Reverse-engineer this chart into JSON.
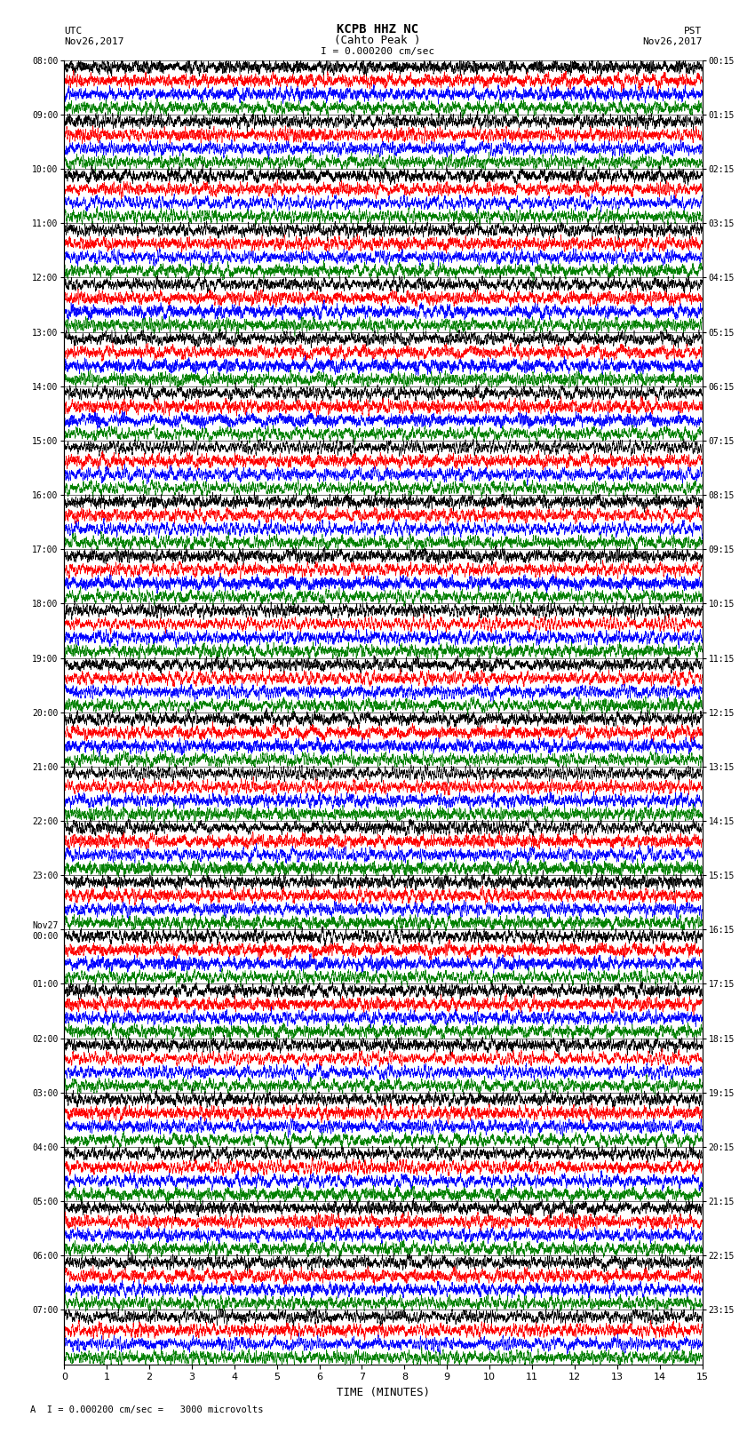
{
  "title_line1": "KCPB HHZ NC",
  "title_line2": "(Cahto Peak )",
  "scale_label": " = 0.000200 cm/sec",
  "label_left_top": "UTC",
  "label_left_date": "Nov26,2017",
  "label_right_top": "PST",
  "label_right_date": "Nov26,2017",
  "xlabel": "TIME (MINUTES)",
  "footer": "A  I = 0.000200 cm/sec =   3000 microvolts",
  "left_times": [
    "08:00",
    "09:00",
    "10:00",
    "11:00",
    "12:00",
    "13:00",
    "14:00",
    "15:00",
    "16:00",
    "17:00",
    "18:00",
    "19:00",
    "20:00",
    "21:00",
    "22:00",
    "23:00",
    "Nov27\n00:00",
    "01:00",
    "02:00",
    "03:00",
    "04:00",
    "05:00",
    "06:00",
    "07:00"
  ],
  "right_times": [
    "00:15",
    "01:15",
    "02:15",
    "03:15",
    "04:15",
    "05:15",
    "06:15",
    "07:15",
    "08:15",
    "09:15",
    "10:15",
    "11:15",
    "12:15",
    "13:15",
    "14:15",
    "15:15",
    "16:15",
    "17:15",
    "18:15",
    "19:15",
    "20:15",
    "21:15",
    "22:15",
    "23:15"
  ],
  "n_rows": 24,
  "display_minutes": 15,
  "colors": [
    "black",
    "red",
    "blue",
    "green"
  ],
  "bg_color": "white",
  "trace_lw": 0.4,
  "x_ticks": [
    0,
    1,
    2,
    3,
    4,
    5,
    6,
    7,
    8,
    9,
    10,
    11,
    12,
    13,
    14,
    15
  ]
}
